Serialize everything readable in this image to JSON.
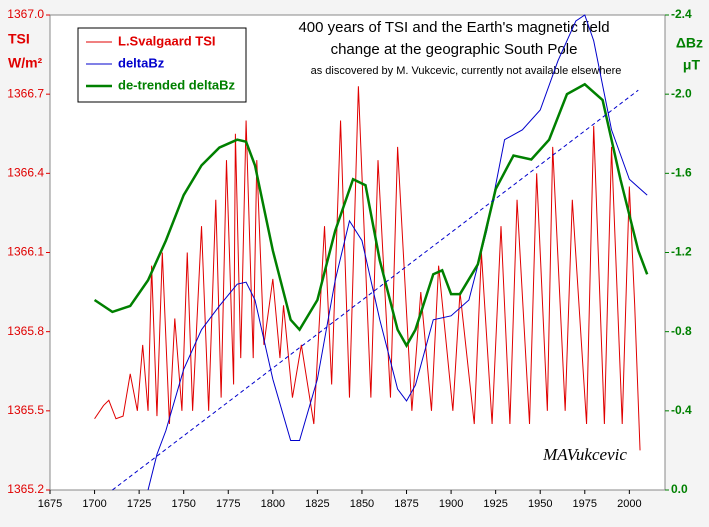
{
  "chart_data": {
    "type": "line",
    "title": "400 years of TSI and the Earth's magnetic field",
    "title2": "change at the geographic South Pole",
    "subtitle": "as discovered by M. Vukcevic, currently not available elsewhere",
    "ylabel": "TSI",
    "ylabel_units": "W/m²",
    "y2label": "ΔBz",
    "y2label_units": "μT",
    "signature": "MAVukcevic",
    "xlim": [
      1675,
      2020
    ],
    "xticks": [
      1675,
      1700,
      1725,
      1750,
      1775,
      1800,
      1825,
      1850,
      1875,
      1900,
      1925,
      1950,
      1975,
      2000
    ],
    "ylim": [
      1365.2,
      1367
    ],
    "yticks": [
      1365.2,
      1365.5,
      1365.8,
      1366.1,
      1366.4,
      1366.7,
      {
        "value": 1367,
        "label": "1367.0"
      }
    ],
    "y2lim": [
      0,
      -2.4
    ],
    "y2ticks": [
      {
        "value": 0,
        "label": "0.0"
      },
      -0.4,
      -0.8,
      -1.2,
      -1.6,
      {
        "value": -2,
        "label": "-2.0"
      },
      -2.4
    ],
    "series": [
      {
        "name": "L.Svalgaard TSI",
        "color": "#e00000",
        "x": [
          1700,
          1705,
          1708,
          1712,
          1716,
          1720,
          1724,
          1727,
          1730,
          1732,
          1735,
          1738,
          1742,
          1745,
          1749,
          1752,
          1755,
          1760,
          1764,
          1768,
          1771,
          1774,
          1778,
          1779,
          1782,
          1785,
          1789,
          1791,
          1795,
          1800,
          1804,
          1806,
          1811,
          1816,
          1823,
          1829,
          1833,
          1838,
          1843,
          1848,
          1855,
          1859,
          1866,
          1870,
          1878,
          1883,
          1889,
          1893,
          1901,
          1905,
          1913,
          1917,
          1923,
          1928,
          1933,
          1937,
          1944,
          1948,
          1954,
          1957,
          1964,
          1968,
          1976,
          1980,
          1986,
          1990,
          1996,
          2000,
          2003,
          2006
        ],
        "values": [
          1365.47,
          1365.52,
          1365.54,
          1365.47,
          1365.48,
          1365.64,
          1365.5,
          1365.75,
          1365.5,
          1366.05,
          1365.48,
          1366.1,
          1365.45,
          1365.85,
          1365.5,
          1366.1,
          1365.5,
          1366.2,
          1365.5,
          1366.3,
          1365.55,
          1366.45,
          1365.6,
          1366.55,
          1365.7,
          1366.6,
          1365.7,
          1366.45,
          1365.75,
          1366,
          1365.7,
          1365.9,
          1365.55,
          1365.75,
          1365.45,
          1366.2,
          1365.6,
          1366.6,
          1365.55,
          1366.73,
          1365.55,
          1366.45,
          1365.55,
          1366.5,
          1365.5,
          1365.95,
          1365.5,
          1366.05,
          1365.5,
          1365.95,
          1365.45,
          1366.1,
          1365.45,
          1366.2,
          1365.45,
          1366.3,
          1365.45,
          1366.4,
          1365.5,
          1366.5,
          1365.5,
          1366.3,
          1365.45,
          1366.58,
          1365.45,
          1366.5,
          1365.45,
          1366.35,
          1365.9,
          1365.35
        ]
      },
      {
        "name": "deltaBz",
        "color": "#0000cc",
        "axis": "y2",
        "x": [
          1730,
          1735,
          1740,
          1750,
          1760,
          1770,
          1780,
          1785,
          1790,
          1800,
          1810,
          1815,
          1825,
          1835,
          1843,
          1850,
          1860,
          1870,
          1875,
          1880,
          1890,
          1900,
          1910,
          1920,
          1930,
          1940,
          1950,
          1960,
          1970,
          1975,
          1980,
          1990,
          2000,
          2010
        ],
        "values": [
          0,
          -0.18,
          -0.3,
          -0.61,
          -0.81,
          -0.93,
          -1.04,
          -1.05,
          -0.96,
          -0.56,
          -0.25,
          -0.25,
          -0.56,
          -1.06,
          -1.36,
          -1.26,
          -0.86,
          -0.51,
          -0.45,
          -0.53,
          -0.86,
          -0.88,
          -0.96,
          -1.31,
          -1.77,
          -1.82,
          -1.92,
          -2.17,
          -2.37,
          -2.4,
          -2.27,
          -1.82,
          -1.57,
          -1.49
        ]
      },
      {
        "name": "de-trended  deltaBz",
        "color": "#008000",
        "axis": "y2",
        "width": 2.5,
        "x": [
          1700,
          1710,
          1720,
          1730,
          1740,
          1750,
          1760,
          1770,
          1780,
          1785,
          1790,
          1800,
          1810,
          1815,
          1825,
          1835,
          1845,
          1852,
          1860,
          1870,
          1875,
          1880,
          1890,
          1895,
          1900,
          1905,
          1915,
          1925,
          1935,
          1945,
          1955,
          1965,
          1975,
          1985,
          1995,
          2005,
          2010
        ],
        "values": [
          -0.96,
          -0.9,
          -0.93,
          -1.06,
          -1.26,
          -1.49,
          -1.64,
          -1.73,
          -1.77,
          -1.76,
          -1.64,
          -1.21,
          -0.86,
          -0.81,
          -0.96,
          -1.31,
          -1.57,
          -1.54,
          -1.16,
          -0.81,
          -0.73,
          -0.81,
          -1.09,
          -1.11,
          -0.99,
          -0.99,
          -1.14,
          -1.52,
          -1.69,
          -1.67,
          -1.77,
          -2,
          -2.05,
          -1.97,
          -1.57,
          -1.21,
          -1.09
        ]
      },
      {
        "color": "#0000cc",
        "axis": "y2",
        "dashed": true,
        "x": [
          1710,
          2005
        ],
        "values": [
          0,
          -2.02
        ]
      }
    ]
  }
}
